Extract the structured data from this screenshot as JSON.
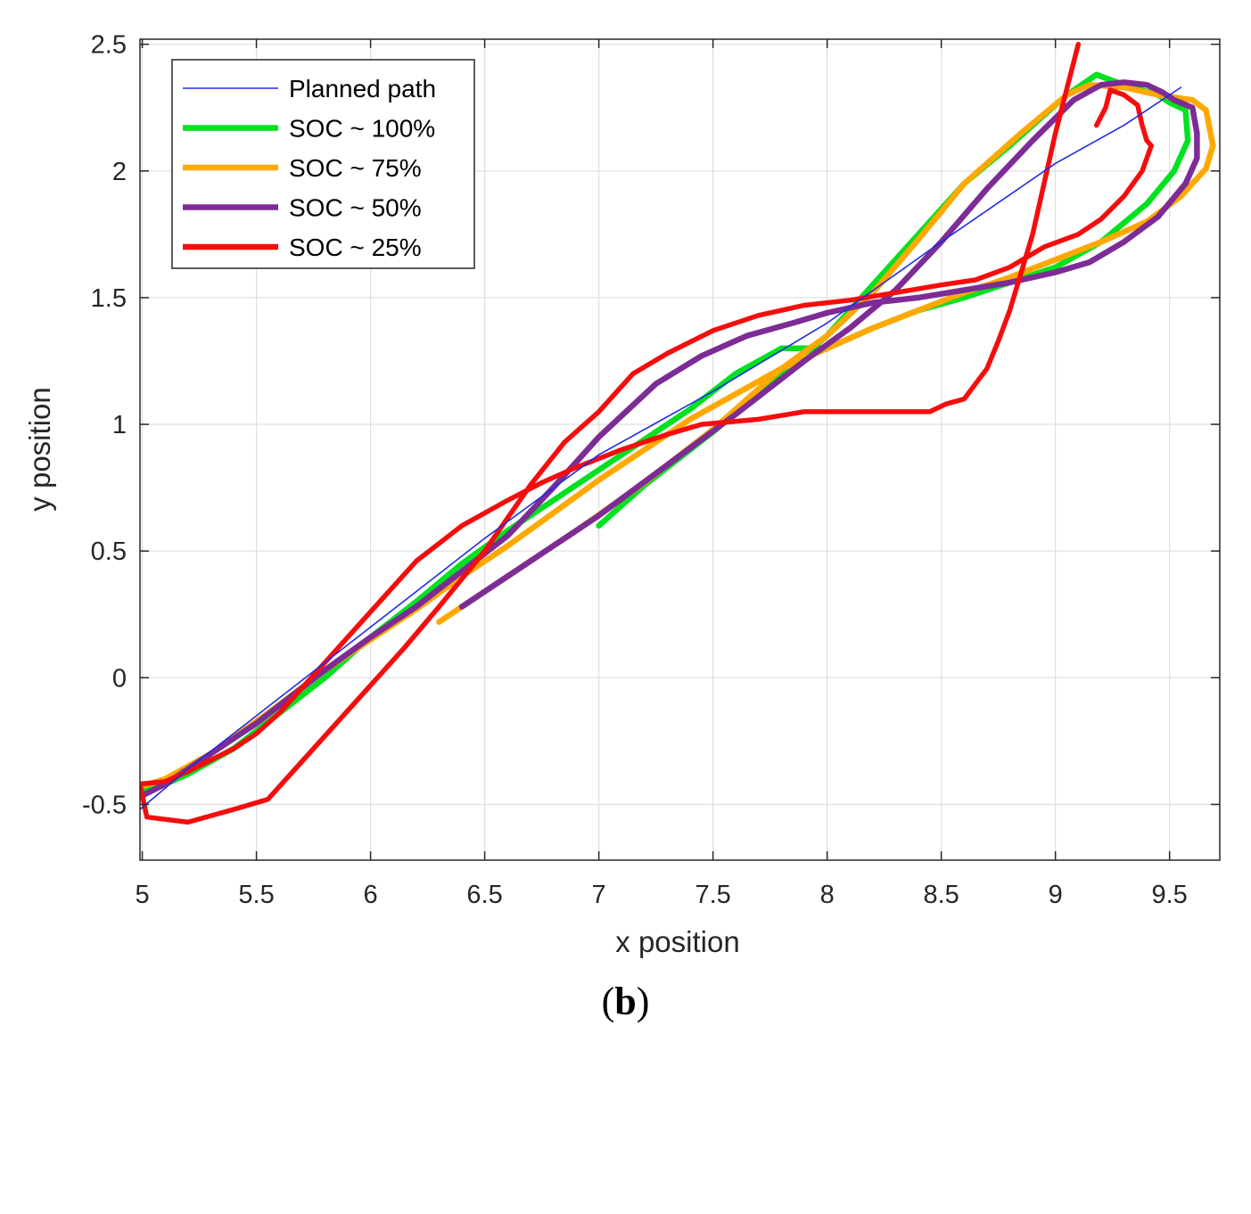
{
  "chart_data": {
    "type": "line",
    "title": "",
    "xlabel": "x position",
    "ylabel": "y position",
    "xlim": [
      4.99,
      9.72
    ],
    "ylim": [
      -0.72,
      2.52
    ],
    "xticks": [
      5,
      5.5,
      6,
      6.5,
      7,
      7.5,
      8,
      8.5,
      9,
      9.5
    ],
    "xtick_labels": [
      "5",
      "5.5",
      "6",
      "6.5",
      "7",
      "7.5",
      "8",
      "8.5",
      "9",
      "9.5"
    ],
    "yticks": [
      -0.5,
      0,
      0.5,
      1,
      1.5,
      2,
      2.5
    ],
    "ytick_labels": [
      "-0.5",
      "0",
      "0.5",
      "1",
      "1.5",
      "2",
      "2.5"
    ],
    "grid": true,
    "legend_position": "top-left",
    "series": [
      {
        "name": "Planned path",
        "color": "#1f2be6",
        "points": [
          [
            4.99,
            -0.52
          ],
          [
            5.2,
            -0.36
          ],
          [
            5.6,
            -0.08
          ],
          [
            6.0,
            0.2
          ],
          [
            6.5,
            0.55
          ],
          [
            7.0,
            0.88
          ],
          [
            7.5,
            1.13
          ],
          [
            8.0,
            1.4
          ],
          [
            8.5,
            1.72
          ],
          [
            9.0,
            2.03
          ],
          [
            9.3,
            2.18
          ],
          [
            9.55,
            2.33
          ]
        ]
      },
      {
        "name": "SOC ~ 100%",
        "color": "#00e11f",
        "points": [
          [
            4.99,
            -0.45
          ],
          [
            5.1,
            -0.42
          ],
          [
            5.2,
            -0.38
          ],
          [
            5.4,
            -0.28
          ],
          [
            5.6,
            -0.14
          ],
          [
            5.8,
            0.0
          ],
          [
            6.0,
            0.16
          ],
          [
            6.2,
            0.3
          ],
          [
            6.4,
            0.45
          ],
          [
            6.6,
            0.58
          ],
          [
            6.8,
            0.7
          ],
          [
            7.0,
            0.82
          ],
          [
            7.2,
            0.94
          ],
          [
            7.4,
            1.06
          ],
          [
            7.6,
            1.2
          ],
          [
            7.8,
            1.3
          ],
          [
            8.0,
            1.3
          ],
          [
            8.2,
            1.38
          ],
          [
            8.4,
            1.45
          ],
          [
            8.6,
            1.5
          ],
          [
            8.8,
            1.56
          ],
          [
            9.0,
            1.62
          ],
          [
            9.2,
            1.72
          ],
          [
            9.4,
            1.87
          ],
          [
            9.52,
            2.0
          ],
          [
            9.58,
            2.12
          ],
          [
            9.57,
            2.24
          ],
          [
            9.5,
            2.27
          ],
          [
            9.45,
            2.3
          ],
          [
            9.3,
            2.34
          ],
          [
            9.18,
            2.38
          ],
          [
            9.05,
            2.3
          ],
          [
            8.8,
            2.1
          ],
          [
            8.6,
            1.95
          ],
          [
            8.4,
            1.75
          ],
          [
            8.2,
            1.55
          ],
          [
            8.0,
            1.35
          ],
          [
            7.8,
            1.2
          ],
          [
            7.5,
            0.97
          ],
          [
            7.2,
            0.76
          ],
          [
            7.0,
            0.6
          ]
        ]
      },
      {
        "name": "SOC ~ 75%",
        "color": "#ffa800",
        "points": [
          [
            4.99,
            -0.43
          ],
          [
            5.1,
            -0.4
          ],
          [
            5.3,
            -0.3
          ],
          [
            5.55,
            -0.14
          ],
          [
            5.8,
            0.03
          ],
          [
            6.0,
            0.15
          ],
          [
            6.2,
            0.27
          ],
          [
            6.4,
            0.4
          ],
          [
            6.6,
            0.52
          ],
          [
            6.8,
            0.65
          ],
          [
            7.0,
            0.78
          ],
          [
            7.2,
            0.9
          ],
          [
            7.4,
            1.02
          ],
          [
            7.6,
            1.12
          ],
          [
            7.8,
            1.22
          ],
          [
            8.0,
            1.3
          ],
          [
            8.2,
            1.38
          ],
          [
            8.4,
            1.45
          ],
          [
            8.6,
            1.52
          ],
          [
            8.8,
            1.58
          ],
          [
            9.0,
            1.65
          ],
          [
            9.2,
            1.72
          ],
          [
            9.4,
            1.8
          ],
          [
            9.55,
            1.9
          ],
          [
            9.66,
            2.01
          ],
          [
            9.69,
            2.1
          ],
          [
            9.66,
            2.24
          ],
          [
            9.6,
            2.28
          ],
          [
            9.45,
            2.3
          ],
          [
            9.3,
            2.33
          ],
          [
            9.15,
            2.34
          ],
          [
            9.05,
            2.3
          ],
          [
            8.85,
            2.15
          ],
          [
            8.6,
            1.95
          ],
          [
            8.4,
            1.73
          ],
          [
            8.2,
            1.52
          ],
          [
            8.0,
            1.35
          ],
          [
            7.8,
            1.22
          ],
          [
            7.5,
            0.98
          ],
          [
            7.2,
            0.77
          ],
          [
            6.9,
            0.58
          ],
          [
            6.6,
            0.4
          ],
          [
            6.3,
            0.22
          ]
        ]
      },
      {
        "name": "SOC ~ 50%",
        "color": "#7d2c95",
        "points": [
          [
            4.99,
            -0.47
          ],
          [
            5.1,
            -0.42
          ],
          [
            5.3,
            -0.3
          ],
          [
            5.5,
            -0.18
          ],
          [
            5.8,
            0.03
          ],
          [
            6.0,
            0.16
          ],
          [
            6.2,
            0.28
          ],
          [
            6.4,
            0.42
          ],
          [
            6.6,
            0.56
          ],
          [
            6.8,
            0.75
          ],
          [
            7.0,
            0.95
          ],
          [
            7.25,
            1.16
          ],
          [
            7.45,
            1.27
          ],
          [
            7.65,
            1.35
          ],
          [
            7.85,
            1.4
          ],
          [
            8.0,
            1.44
          ],
          [
            8.2,
            1.48
          ],
          [
            8.4,
            1.5
          ],
          [
            8.6,
            1.53
          ],
          [
            8.8,
            1.56
          ],
          [
            9.0,
            1.6
          ],
          [
            9.15,
            1.64
          ],
          [
            9.3,
            1.72
          ],
          [
            9.45,
            1.82
          ],
          [
            9.57,
            1.95
          ],
          [
            9.62,
            2.05
          ],
          [
            9.62,
            2.15
          ],
          [
            9.6,
            2.25
          ],
          [
            9.52,
            2.28
          ],
          [
            9.47,
            2.31
          ],
          [
            9.4,
            2.34
          ],
          [
            9.3,
            2.35
          ],
          [
            9.2,
            2.34
          ],
          [
            9.08,
            2.28
          ],
          [
            8.9,
            2.12
          ],
          [
            8.7,
            1.93
          ],
          [
            8.5,
            1.72
          ],
          [
            8.3,
            1.53
          ],
          [
            8.1,
            1.38
          ],
          [
            7.9,
            1.25
          ],
          [
            7.6,
            1.04
          ],
          [
            7.3,
            0.84
          ],
          [
            7.0,
            0.64
          ],
          [
            6.7,
            0.46
          ],
          [
            6.4,
            0.28
          ]
        ]
      },
      {
        "name": "SOC ~ 25%",
        "color": "#f50d0d",
        "points": [
          [
            9.1,
            2.5
          ],
          [
            9.0,
            2.15
          ],
          [
            8.95,
            1.95
          ],
          [
            8.9,
            1.75
          ],
          [
            8.85,
            1.6
          ],
          [
            8.8,
            1.45
          ],
          [
            8.75,
            1.33
          ],
          [
            8.7,
            1.22
          ],
          [
            8.6,
            1.1
          ],
          [
            8.52,
            1.08
          ],
          [
            8.45,
            1.05
          ],
          [
            8.3,
            1.05
          ],
          [
            8.1,
            1.05
          ],
          [
            7.9,
            1.05
          ],
          [
            7.7,
            1.02
          ],
          [
            7.45,
            1.0
          ],
          [
            7.3,
            0.96
          ],
          [
            7.1,
            0.9
          ],
          [
            6.9,
            0.83
          ],
          [
            6.75,
            0.77
          ],
          [
            6.6,
            0.7
          ],
          [
            6.4,
            0.6
          ],
          [
            6.2,
            0.46
          ],
          [
            6.0,
            0.26
          ],
          [
            5.8,
            0.06
          ],
          [
            5.6,
            -0.14
          ],
          [
            5.5,
            -0.22
          ],
          [
            5.4,
            -0.28
          ],
          [
            5.2,
            -0.37
          ],
          [
            5.1,
            -0.41
          ],
          [
            4.99,
            -0.42
          ],
          [
            5.02,
            -0.55
          ],
          [
            5.2,
            -0.57
          ],
          [
            5.4,
            -0.52
          ],
          [
            5.55,
            -0.48
          ],
          [
            5.7,
            -0.33
          ],
          [
            5.85,
            -0.18
          ],
          [
            6.0,
            -0.03
          ],
          [
            6.15,
            0.12
          ],
          [
            6.3,
            0.28
          ],
          [
            6.5,
            0.5
          ],
          [
            6.7,
            0.76
          ],
          [
            6.85,
            0.93
          ],
          [
            7.0,
            1.05
          ],
          [
            7.15,
            1.2
          ],
          [
            7.3,
            1.28
          ],
          [
            7.5,
            1.37
          ],
          [
            7.7,
            1.43
          ],
          [
            7.9,
            1.47
          ],
          [
            8.1,
            1.49
          ],
          [
            8.3,
            1.52
          ],
          [
            8.5,
            1.55
          ],
          [
            8.65,
            1.57
          ],
          [
            8.8,
            1.62
          ],
          [
            8.95,
            1.7
          ],
          [
            9.1,
            1.75
          ],
          [
            9.2,
            1.81
          ],
          [
            9.3,
            1.9
          ],
          [
            9.38,
            2.0
          ],
          [
            9.42,
            2.1
          ],
          [
            9.4,
            2.12
          ],
          [
            9.38,
            2.18
          ],
          [
            9.36,
            2.26
          ],
          [
            9.3,
            2.3
          ],
          [
            9.24,
            2.32
          ],
          [
            9.22,
            2.25
          ],
          [
            9.18,
            2.18
          ]
        ]
      }
    ]
  },
  "caption": {
    "open": "(",
    "letter": "b",
    "close": ")"
  }
}
